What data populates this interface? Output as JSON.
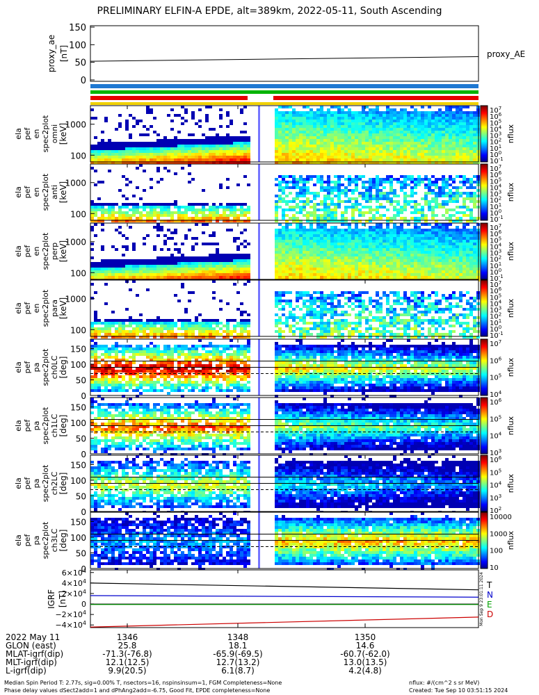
{
  "title": "PRELIMINARY ELFIN-A EPDE, alt=389km, 2022-05-11, South Ascending",
  "proxy_ae": {
    "ylabel": [
      "proxy_ae",
      "[nT]"
    ],
    "ticks": [
      "150",
      "100",
      "50",
      "0"
    ],
    "ylim": [
      0,
      150
    ],
    "legend": "proxy_AE",
    "line": [
      [
        0,
        53
      ],
      [
        1,
        66
      ]
    ]
  },
  "spectrograms": [
    {
      "ylabel": [
        "ela",
        "pef",
        "en",
        "spec2plot",
        "omni",
        "[keV]"
      ],
      "yticks": [
        "1000",
        "100"
      ],
      "cbar": [
        "10^7",
        "10^6",
        "10^5",
        "10^4",
        "10^3",
        "10^2",
        "10^1",
        "10^0",
        "10^-1"
      ],
      "cbar_label": "nflux"
    },
    {
      "ylabel": [
        "ela",
        "pef",
        "en",
        "spec2plot",
        "anti",
        "[keV]"
      ],
      "yticks": [
        "1000",
        "100"
      ],
      "cbar": [
        "10^7",
        "10^6",
        "10^5",
        "10^4",
        "10^3",
        "10^2",
        "10^1",
        "10^0",
        "10^-1"
      ],
      "cbar_label": "nflux"
    },
    {
      "ylabel": [
        "ela",
        "pef",
        "en",
        "spec2plot",
        "perp",
        "[keV]"
      ],
      "yticks": [
        "1000",
        "100"
      ],
      "cbar": [
        "10^7",
        "10^6",
        "10^5",
        "10^4",
        "10^3",
        "10^2",
        "10^1",
        "10^0",
        "10^-1"
      ],
      "cbar_label": "nflux"
    },
    {
      "ylabel": [
        "ela",
        "pef",
        "en",
        "spec2plot",
        "para",
        "[keV]"
      ],
      "yticks": [
        "1000",
        "100"
      ],
      "cbar": [
        "10^7",
        "10^6",
        "10^5",
        "10^4",
        "10^3",
        "10^2",
        "10^1",
        "10^0",
        "10^-1"
      ],
      "cbar_label": "nflux"
    },
    {
      "ylabel": [
        "ela",
        "pef",
        "pa",
        "spec2plot",
        "ch0LC",
        "[deg]"
      ],
      "yticks": [
        "150",
        "100",
        "50",
        "0"
      ],
      "cbar": [
        "10^7",
        "10^6",
        "10^5",
        "10^4"
      ],
      "cbar_label": "nflux"
    },
    {
      "ylabel": [
        "ela",
        "pef",
        "pa",
        "spec2plot",
        "ch1LC",
        "[deg]"
      ],
      "yticks": [
        "150",
        "100",
        "50",
        "0"
      ],
      "cbar": [
        "10^6",
        "10^5",
        "10^4",
        "10^3"
      ],
      "cbar_label": "nflux"
    },
    {
      "ylabel": [
        "ela",
        "pef",
        "pa",
        "spec2plot",
        "ch2LC",
        "[deg]"
      ],
      "yticks": [
        "150",
        "100",
        "50",
        "0"
      ],
      "cbar": [
        "10^6",
        "10^5",
        "10^4",
        "10^3",
        "10^2"
      ],
      "cbar_label": "nflux"
    },
    {
      "ylabel": [
        "ela",
        "pef",
        "pa",
        "spec2plot",
        "ch3LC",
        "[deg]"
      ],
      "yticks": [
        "150",
        "100",
        "50",
        "0"
      ],
      "cbar": [
        "10000",
        "1000",
        "100",
        "10"
      ],
      "cbar_label": "nflux"
    }
  ],
  "igrf": {
    "ylabel": [
      "IGRF",
      "[nT]"
    ],
    "ticks": [
      "6×10^4",
      "4×10^4",
      "2×10^4",
      "0",
      "−2×10^4",
      "−4×10^4"
    ],
    "ylim": [
      -45000,
      65000
    ],
    "legend": [
      {
        "name": "T",
        "color": "#000000"
      },
      {
        "name": "N",
        "color": "#0000cc"
      },
      {
        "name": "E",
        "color": "#00a000"
      },
      {
        "name": "D",
        "color": "#cc0000"
      }
    ],
    "series": [
      {
        "name": "T",
        "values": [
          [
            0,
            40000
          ],
          [
            1,
            27000
          ]
        ]
      },
      {
        "name": "N",
        "values": [
          [
            0,
            16000
          ],
          [
            1,
            13000
          ]
        ]
      },
      {
        "name": "E",
        "values": [
          [
            0,
            -1000
          ],
          [
            1,
            -1000
          ]
        ]
      },
      {
        "name": "D",
        "values": [
          [
            0,
            -44000
          ],
          [
            1,
            -25000
          ]
        ]
      }
    ],
    "side_text": "Mon Sep 9 23:01:11 2024"
  },
  "xaxis": {
    "ticks": [
      "1346",
      "1348",
      "1350"
    ],
    "rows": [
      {
        "label": "2022 May 11",
        "values": [
          "1346",
          "1348",
          "1350"
        ]
      },
      {
        "label": "GLON (east)",
        "values": [
          "25.8",
          "18.1",
          "14.6"
        ]
      },
      {
        "label": "MLAT-igrf(dip)",
        "values": [
          "-71.3(-76.8)",
          "-65.9(-69.5)",
          "-60.7(-62.0)"
        ]
      },
      {
        "label": "MLT-igrf(dip)",
        "values": [
          "12.1(12.5)",
          "12.7(13.2)",
          "13.0(13.5)"
        ]
      },
      {
        "label": "L-igrf(dip)",
        "values": [
          "9.9(20.5)",
          "6.1(8.7)",
          "4.2(4.8)"
        ]
      }
    ]
  },
  "footer": {
    "line1": "Median Spin Period T: 2.77s, sig=0.00% T, nsectors=16, nspinsinsum=1, FGM Completeness=None",
    "line2": "Phase delay values dSect2add=1 and dPhAng2add=-6.75, Good Fit, EPDE completeness=None",
    "right1": "nflux: #/(cm^2 s sr MeV)",
    "right2": "Created: Tue Sep 10 03:51:15 2024"
  },
  "colors": {
    "bar_blue": "#1e78d2",
    "bar_green": "#00b400",
    "bar_red": "#e60000",
    "bar_yellow": "#f0d000"
  }
}
